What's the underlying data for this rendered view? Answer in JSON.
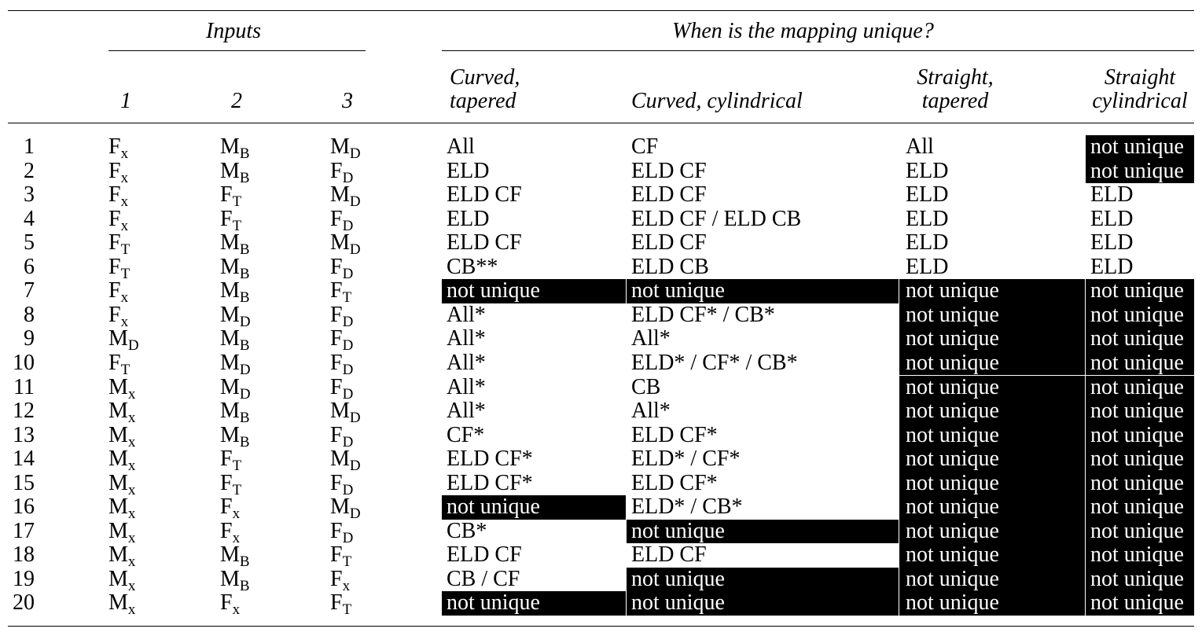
{
  "table": {
    "group_inputs": "Inputs",
    "group_unique": "When is the mapping unique?",
    "col_input_1": "1",
    "col_input_2": "2",
    "col_input_3": "3",
    "col_ct_line1": "Curved,",
    "col_ct_line2": "tapered",
    "col_cc": "Curved, cylindrical",
    "col_st_line1": "Straight,",
    "col_st_line2": "tapered",
    "col_sc_line1": "Straight",
    "col_sc_line2": "cylindrical",
    "rows": [
      {
        "n": "1",
        "i1": "F",
        "i1s": "x",
        "i2": "M",
        "i2s": "B",
        "i3": "M",
        "i3s": "D",
        "ct": "All",
        "cc": "CF",
        "st": "All",
        "sc": "not unique"
      },
      {
        "n": "2",
        "i1": "F",
        "i1s": "x",
        "i2": "M",
        "i2s": "B",
        "i3": "F",
        "i3s": "D",
        "ct": "ELD",
        "cc": "ELD CF",
        "st": "ELD",
        "sc": "not unique"
      },
      {
        "n": "3",
        "i1": "F",
        "i1s": "x",
        "i2": "F",
        "i2s": "T",
        "i3": "M",
        "i3s": "D",
        "ct": "ELD CF",
        "cc": "ELD CF",
        "st": "ELD",
        "sc": "ELD"
      },
      {
        "n": "4",
        "i1": "F",
        "i1s": "x",
        "i2": "F",
        "i2s": "T",
        "i3": "F",
        "i3s": "D",
        "ct": "ELD",
        "cc": "ELD CF / ELD CB",
        "st": "ELD",
        "sc": "ELD"
      },
      {
        "n": "5",
        "i1": "F",
        "i1s": "T",
        "i2": "M",
        "i2s": "B",
        "i3": "M",
        "i3s": "D",
        "ct": "ELD CF",
        "cc": "ELD CF",
        "st": "ELD",
        "sc": "ELD"
      },
      {
        "n": "6",
        "i1": "F",
        "i1s": "T",
        "i2": "M",
        "i2s": "B",
        "i3": "F",
        "i3s": "D",
        "ct": "CB**",
        "cc": "ELD CB",
        "st": "ELD",
        "sc": "ELD"
      },
      {
        "n": "7",
        "i1": "F",
        "i1s": "x",
        "i2": "M",
        "i2s": "B",
        "i3": "F",
        "i3s": "T",
        "ct": "not unique",
        "cc": "not unique",
        "st": "not unique",
        "sc": "not unique"
      },
      {
        "n": "8",
        "i1": "F",
        "i1s": "x",
        "i2": "M",
        "i2s": "D",
        "i3": "F",
        "i3s": "D",
        "ct": "All*",
        "cc": "ELD CF* / CB*",
        "st": "not unique",
        "sc": "not unique"
      },
      {
        "n": "9",
        "i1": "M",
        "i1s": "D",
        "i2": "M",
        "i2s": "B",
        "i3": "F",
        "i3s": "D",
        "ct": "All*",
        "cc": "All*",
        "st": "not unique",
        "sc": "not unique"
      },
      {
        "n": "10",
        "i1": "F",
        "i1s": "T",
        "i2": "M",
        "i2s": "D",
        "i3": "F",
        "i3s": "D",
        "ct": "All*",
        "cc": "ELD* / CF* / CB*",
        "st": "not unique",
        "sc": "not unique"
      },
      {
        "n": "11",
        "i1": "M",
        "i1s": "x",
        "i2": "M",
        "i2s": "D",
        "i3": "F",
        "i3s": "D",
        "ct": "All*",
        "cc": "CB",
        "st": "not unique",
        "sc": "not unique"
      },
      {
        "n": "12",
        "i1": "M",
        "i1s": "x",
        "i2": "M",
        "i2s": "B",
        "i3": "M",
        "i3s": "D",
        "ct": "All*",
        "cc": "All*",
        "st": "not unique",
        "sc": "not unique"
      },
      {
        "n": "13",
        "i1": "M",
        "i1s": "x",
        "i2": "M",
        "i2s": "B",
        "i3": "F",
        "i3s": "D",
        "ct": "CF*",
        "cc": "ELD CF*",
        "st": "not unique",
        "sc": "not unique"
      },
      {
        "n": "14",
        "i1": "M",
        "i1s": "x",
        "i2": "F",
        "i2s": "T",
        "i3": "M",
        "i3s": "D",
        "ct": "ELD CF*",
        "cc": "ELD* / CF*",
        "st": "not unique",
        "sc": "not unique"
      },
      {
        "n": "15",
        "i1": "M",
        "i1s": "x",
        "i2": "F",
        "i2s": "T",
        "i3": "F",
        "i3s": "D",
        "ct": "ELD CF*",
        "cc": "ELD CF*",
        "st": "not unique",
        "sc": "not unique"
      },
      {
        "n": "16",
        "i1": "M",
        "i1s": "x",
        "i2": "F",
        "i2s": "x",
        "i3": "M",
        "i3s": "D",
        "ct": "not unique",
        "cc": "ELD* / CB*",
        "st": "not unique",
        "sc": "not unique"
      },
      {
        "n": "17",
        "i1": "M",
        "i1s": "x",
        "i2": "F",
        "i2s": "x",
        "i3": "F",
        "i3s": "D",
        "ct": "CB*",
        "cc": "not unique",
        "st": "not unique",
        "sc": "not unique"
      },
      {
        "n": "18",
        "i1": "M",
        "i1s": "x",
        "i2": "M",
        "i2s": "B",
        "i3": "F",
        "i3s": "T",
        "ct": "ELD CF",
        "cc": "ELD CF",
        "st": "not unique",
        "sc": "not unique"
      },
      {
        "n": "19",
        "i1": "M",
        "i1s": "x",
        "i2": "M",
        "i2s": "B",
        "i3": "F",
        "i3s": "x",
        "ct": "CB / CF",
        "cc": "not unique",
        "st": "not unique",
        "sc": "not unique"
      },
      {
        "n": "20",
        "i1": "M",
        "i1s": "x",
        "i2": "F",
        "i2s": "x",
        "i3": "F",
        "i3s": "T",
        "ct": "not unique",
        "cc": "not unique",
        "st": "not unique",
        "sc": "not unique"
      }
    ]
  }
}
